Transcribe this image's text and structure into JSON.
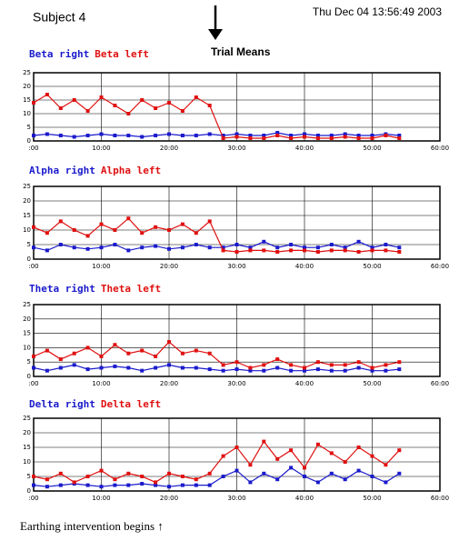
{
  "header": {
    "subject": "Subject 4",
    "timestamp": "Thu Dec 04 13:56:49 2003",
    "label": "Trial Means"
  },
  "footer": "Earthing intervention begins ↑",
  "chart_data": [
    {
      "type": "scatter",
      "grid": true,
      "x": [
        0,
        2,
        4,
        6,
        8,
        10,
        12,
        14,
        16,
        18,
        20,
        22,
        24,
        26,
        28,
        30,
        32,
        34,
        36,
        38,
        40,
        42,
        44,
        46,
        48,
        50,
        52,
        54
      ],
      "xlim": [
        0,
        60
      ],
      "ylim": [
        0,
        25
      ],
      "xticks": [
        {
          "value": 0,
          "label": ":00"
        },
        {
          "value": 10,
          "label": "10:00"
        },
        {
          "value": 20,
          "label": "20:00"
        },
        {
          "value": 30,
          "label": "30:00"
        },
        {
          "value": 40,
          "label": "40:00"
        },
        {
          "value": 50,
          "label": "50:00"
        },
        {
          "value": 60,
          "label": "60:00"
        }
      ],
      "yticks": [
        0,
        5,
        10,
        15,
        20,
        25
      ],
      "series": [
        {
          "name": "Beta right",
          "color": "#1a1acc",
          "values": [
            2,
            2.5,
            2,
            1.5,
            2,
            2.5,
            2,
            2,
            1.5,
            2,
            2.5,
            2,
            2,
            2.5,
            2,
            2.5,
            2,
            2,
            3,
            2,
            2.5,
            2,
            2,
            2.5,
            2,
            2,
            2.5,
            2
          ]
        },
        {
          "name": "Beta left",
          "color": "#e01010",
          "values": [
            14,
            17,
            12,
            15,
            11,
            16,
            13,
            10,
            15,
            12,
            14,
            11,
            16,
            13,
            1,
            1.5,
            1,
            1,
            2,
            1,
            1.5,
            1,
            1,
            1.5,
            1,
            1,
            2,
            1
          ]
        }
      ]
    },
    {
      "type": "scatter",
      "grid": true,
      "x": [
        0,
        2,
        4,
        6,
        8,
        10,
        12,
        14,
        16,
        18,
        20,
        22,
        24,
        26,
        28,
        30,
        32,
        34,
        36,
        38,
        40,
        42,
        44,
        46,
        48,
        50,
        52,
        54
      ],
      "xlim": [
        0,
        60
      ],
      "ylim": [
        0,
        25
      ],
      "xticks": [
        {
          "value": 0,
          "label": ":00"
        },
        {
          "value": 10,
          "label": "10:00"
        },
        {
          "value": 20,
          "label": "20:00"
        },
        {
          "value": 30,
          "label": "30:00"
        },
        {
          "value": 40,
          "label": "40:00"
        },
        {
          "value": 50,
          "label": "50:00"
        },
        {
          "value": 60,
          "label": "60:00"
        }
      ],
      "yticks": [
        0,
        5,
        10,
        15,
        20,
        25
      ],
      "series": [
        {
          "name": "Alpha right",
          "color": "#1a1acc",
          "values": [
            4,
            3,
            5,
            4,
            3.5,
            4,
            5,
            3,
            4,
            4.5,
            3.5,
            4,
            5,
            4,
            4,
            5,
            4,
            6,
            4,
            5,
            4,
            4,
            5,
            4,
            6,
            4,
            5,
            4
          ]
        },
        {
          "name": "Alpha left",
          "color": "#e01010",
          "values": [
            11,
            9,
            13,
            10,
            8,
            12,
            10,
            14,
            9,
            11,
            10,
            12,
            9,
            13,
            3,
            2.5,
            3,
            3,
            2.5,
            3,
            3,
            2.5,
            3,
            3,
            2.5,
            3,
            3,
            2.5
          ]
        }
      ]
    },
    {
      "type": "scatter",
      "grid": true,
      "x": [
        0,
        2,
        4,
        6,
        8,
        10,
        12,
        14,
        16,
        18,
        20,
        22,
        24,
        26,
        28,
        30,
        32,
        34,
        36,
        38,
        40,
        42,
        44,
        46,
        48,
        50,
        52,
        54
      ],
      "xlim": [
        0,
        60
      ],
      "ylim": [
        0,
        25
      ],
      "xticks": [
        {
          "value": 0,
          "label": ":00"
        },
        {
          "value": 10,
          "label": "10:00"
        },
        {
          "value": 20,
          "label": "20:00"
        },
        {
          "value": 30,
          "label": "30:00"
        },
        {
          "value": 40,
          "label": "40:00"
        },
        {
          "value": 50,
          "label": "50:00"
        },
        {
          "value": 60,
          "label": "60:00"
        }
      ],
      "yticks": [
        0,
        5,
        10,
        15,
        20,
        25
      ],
      "series": [
        {
          "name": "Theta right",
          "color": "#1a1acc",
          "values": [
            3,
            2,
            3,
            4,
            2.5,
            3,
            3.5,
            3,
            2,
            3,
            4,
            3,
            3,
            2.5,
            2,
            2.5,
            2,
            2,
            3,
            2,
            2,
            2.5,
            2,
            2,
            3,
            2,
            2,
            2.5
          ]
        },
        {
          "name": "Theta left",
          "color": "#e01010",
          "values": [
            7,
            9,
            6,
            8,
            10,
            7,
            11,
            8,
            9,
            7,
            12,
            8,
            9,
            8,
            4,
            5,
            3,
            4,
            6,
            4,
            3,
            5,
            4,
            4,
            5,
            3,
            4,
            5
          ]
        }
      ]
    },
    {
      "type": "scatter",
      "grid": true,
      "x": [
        0,
        2,
        4,
        6,
        8,
        10,
        12,
        14,
        16,
        18,
        20,
        22,
        24,
        26,
        28,
        30,
        32,
        34,
        36,
        38,
        40,
        42,
        44,
        46,
        48,
        50,
        52,
        54
      ],
      "xlim": [
        0,
        60
      ],
      "ylim": [
        0,
        25
      ],
      "xticks": [
        {
          "value": 0,
          "label": ":00"
        },
        {
          "value": 10,
          "label": "10:00"
        },
        {
          "value": 20,
          "label": "20:00"
        },
        {
          "value": 30,
          "label": "30:00"
        },
        {
          "value": 40,
          "label": "40:00"
        },
        {
          "value": 50,
          "label": "50:00"
        },
        {
          "value": 60,
          "label": "60:00"
        }
      ],
      "yticks": [
        0,
        5,
        10,
        15,
        20,
        25
      ],
      "series": [
        {
          "name": "Delta right",
          "color": "#1a1acc",
          "values": [
            2,
            1.5,
            2,
            2.5,
            2,
            1.5,
            2,
            2,
            2.5,
            2,
            1.5,
            2,
            2,
            2,
            5,
            7,
            3,
            6,
            4,
            8,
            5,
            3,
            6,
            4,
            7,
            5,
            3,
            6
          ]
        },
        {
          "name": "Delta left",
          "color": "#e01010",
          "values": [
            5,
            4,
            6,
            3,
            5,
            7,
            4,
            6,
            5,
            3,
            6,
            5,
            4,
            6,
            12,
            15,
            9,
            17,
            11,
            14,
            8,
            16,
            13,
            10,
            15,
            12,
            9,
            14
          ]
        }
      ]
    }
  ]
}
